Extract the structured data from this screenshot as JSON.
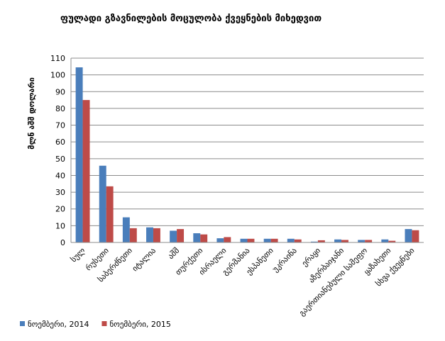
{
  "chart_data": {
    "type": "bar",
    "title": "ფულადი გზავნილების მოცულობა ქვეყნების მიხედვით",
    "y_label": "მლნ აშშ დოლარი",
    "categories": [
      "სულ",
      "რუსეთი",
      "საბერძნეთი",
      "იტალია",
      "აშშ",
      "თურქეთი",
      "ისრაელი",
      "გერმანია",
      "ესპანეთი",
      "უკრაინა",
      "ერაყი",
      "აზერბაიჯანი",
      "გაერთიანებული სამეფო",
      "ყაზახეთი",
      "სხვა ქვეყნები"
    ],
    "series": [
      {
        "name": "ნოემბერი, 2014",
        "color": "#4a7ebb",
        "values": [
          104.5,
          45.8,
          15,
          9,
          7,
          5.5,
          2.5,
          2.2,
          2.2,
          2.2,
          0.5,
          1.8,
          1.5,
          1.8,
          8
        ]
      },
      {
        "name": "ნოემბერი, 2015",
        "color": "#be4b48",
        "values": [
          85,
          33.5,
          8.5,
          8.5,
          8,
          4.8,
          3.2,
          2.2,
          2.2,
          1.8,
          1.3,
          1.5,
          1.5,
          1.0,
          7.3
        ]
      }
    ],
    "ylim": [
      0,
      110
    ],
    "yticks": [
      0,
      10,
      20,
      30,
      40,
      50,
      60,
      70,
      80,
      90,
      100,
      110
    ],
    "grid": true,
    "legend": "bottom-left"
  }
}
